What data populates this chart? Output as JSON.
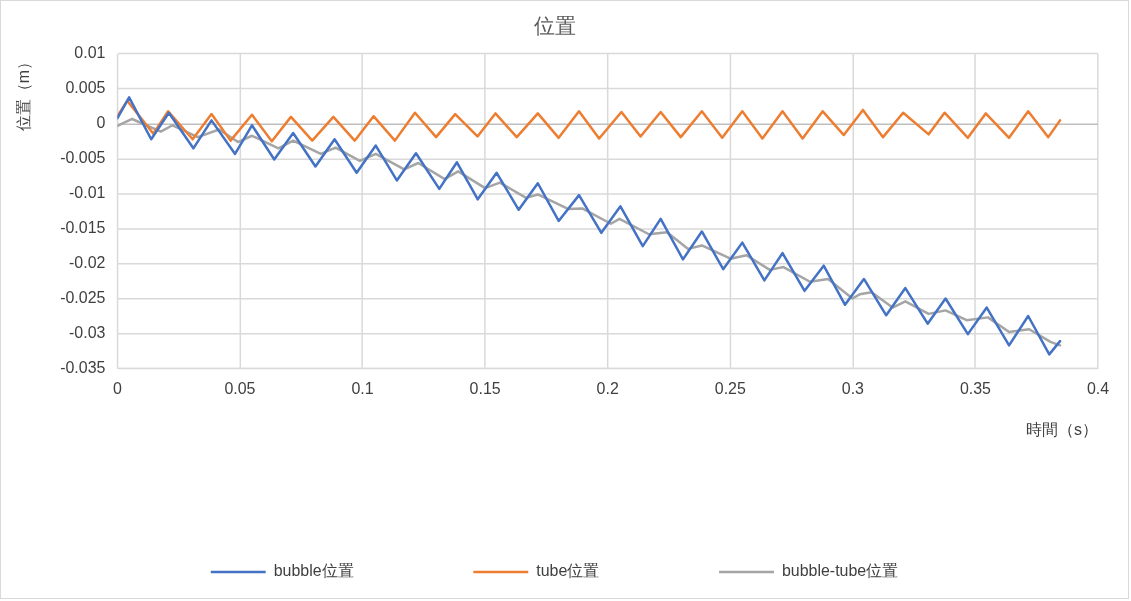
{
  "chart_data": {
    "type": "line",
    "title": "位置",
    "xlabel": "時間（s）",
    "ylabel": "位置（m）",
    "xlim": [
      0,
      0.4
    ],
    "xticks": [
      0,
      0.05,
      0.1,
      0.15,
      0.2,
      0.25,
      0.3,
      0.35,
      0.4
    ],
    "ylim": [
      -0.035,
      0.01
    ],
    "yticks": [
      0.01,
      0.005,
      0,
      -0.005,
      -0.01,
      -0.015,
      -0.02,
      -0.025,
      -0.03,
      -0.035
    ],
    "grid": true,
    "legend": "bottom",
    "marker": "none",
    "line_style": "solid",
    "series": [
      {
        "name": "bubble位置",
        "color": "#4472c4",
        "x": [
          0,
          0.0048,
          0.0138,
          0.021,
          0.031,
          0.0384,
          0.048,
          0.0549,
          0.064,
          0.0717,
          0.0808,
          0.0886,
          0.0976,
          0.1054,
          0.114,
          0.1218,
          0.1313,
          0.1385,
          0.147,
          0.1547,
          0.1637,
          0.1715,
          0.18,
          0.1883,
          0.1974,
          0.2052,
          0.2143,
          0.2216,
          0.2307,
          0.2384,
          0.2471,
          0.2549,
          0.2639,
          0.2713,
          0.2803,
          0.2881,
          0.2968,
          0.3045,
          0.3136,
          0.3214,
          0.3305,
          0.3378,
          0.3469,
          0.3546,
          0.3637,
          0.3715,
          0.3801,
          0.3845
        ],
        "values": [
          0.0008,
          0.0038,
          -0.0022,
          0.0016,
          -0.0035,
          0.0005,
          -0.0043,
          -0.0002,
          -0.0051,
          -0.0013,
          -0.0061,
          -0.0022,
          -0.007,
          -0.0031,
          -0.0081,
          -0.0042,
          -0.0093,
          -0.0055,
          -0.0108,
          -0.007,
          -0.0123,
          -0.0085,
          -0.0139,
          -0.0102,
          -0.0156,
          -0.0118,
          -0.0175,
          -0.0136,
          -0.0194,
          -0.0154,
          -0.0208,
          -0.017,
          -0.0224,
          -0.0185,
          -0.0239,
          -0.0203,
          -0.0259,
          -0.0222,
          -0.0274,
          -0.0235,
          -0.0286,
          -0.025,
          -0.0301,
          -0.0263,
          -0.0317,
          -0.0275,
          -0.033,
          -0.0311
        ]
      },
      {
        "name": "tube位置",
        "color": "#ed7d31",
        "x": [
          0,
          0.004,
          0.0147,
          0.0207,
          0.0307,
          0.0384,
          0.0462,
          0.0549,
          0.063,
          0.0708,
          0.0795,
          0.0881,
          0.0968,
          0.1045,
          0.1132,
          0.1214,
          0.13,
          0.1378,
          0.1469,
          0.1542,
          0.1629,
          0.1715,
          0.18,
          0.1883,
          0.1965,
          0.2056,
          0.2134,
          0.2216,
          0.2298,
          0.2384,
          0.2467,
          0.2549,
          0.2631,
          0.2713,
          0.2795,
          0.2877,
          0.2963,
          0.3041,
          0.3123,
          0.3205,
          0.3309,
          0.3374,
          0.3469,
          0.3542,
          0.3637,
          0.3715,
          0.3797,
          0.3845
        ],
        "values": [
          0.0011,
          0.0033,
          -0.0014,
          0.0018,
          -0.0022,
          0.0014,
          -0.0024,
          0.0013,
          -0.0025,
          0.001,
          -0.0024,
          0.001,
          -0.0024,
          0.0011,
          -0.0024,
          0.0016,
          -0.0019,
          0.0014,
          -0.0018,
          0.0015,
          -0.0019,
          0.0015,
          -0.002,
          0.0018,
          -0.0021,
          0.0017,
          -0.0018,
          0.0017,
          -0.0019,
          0.0018,
          -0.002,
          0.0018,
          -0.0021,
          0.0018,
          -0.0021,
          0.0018,
          -0.0016,
          0.002,
          -0.0019,
          0.0016,
          -0.0015,
          0.0016,
          -0.002,
          0.0015,
          -0.002,
          0.0018,
          -0.0019,
          0.0005
        ]
      },
      {
        "name": "bubble-tube位置",
        "color": "#a5a5a5",
        "x": [
          0,
          0.006,
          0.0177,
          0.0225,
          0.0328,
          0.0415,
          0.0492,
          0.0549,
          0.0657,
          0.0717,
          0.083,
          0.089,
          0.0989,
          0.1054,
          0.117,
          0.1227,
          0.1335,
          0.139,
          0.15,
          0.156,
          0.1667,
          0.1715,
          0.184,
          0.1896,
          0.2013,
          0.2048,
          0.2168,
          0.2242,
          0.2328,
          0.2384,
          0.2501,
          0.2566,
          0.2661,
          0.2717,
          0.2825,
          0.2899,
          0.2998,
          0.3028,
          0.3076,
          0.3162,
          0.3214,
          0.3309,
          0.3378,
          0.3464,
          0.3551,
          0.3637,
          0.3719,
          0.3806,
          0.3845
        ],
        "values": [
          -0.0003,
          0.0007,
          -0.0011,
          -0.0002,
          -0.0019,
          -0.0008,
          -0.0026,
          -0.0017,
          -0.0035,
          -0.0024,
          -0.0043,
          -0.0034,
          -0.0053,
          -0.0043,
          -0.0065,
          -0.0056,
          -0.0079,
          -0.0068,
          -0.0092,
          -0.0084,
          -0.0106,
          -0.0101,
          -0.0122,
          -0.0121,
          -0.0143,
          -0.0136,
          -0.0158,
          -0.0155,
          -0.0179,
          -0.0174,
          -0.0193,
          -0.0188,
          -0.0209,
          -0.0205,
          -0.0226,
          -0.0222,
          -0.025,
          -0.0244,
          -0.0241,
          -0.0263,
          -0.0254,
          -0.0272,
          -0.0267,
          -0.0281,
          -0.0277,
          -0.0298,
          -0.0294,
          -0.0312,
          -0.0317
        ]
      }
    ]
  }
}
